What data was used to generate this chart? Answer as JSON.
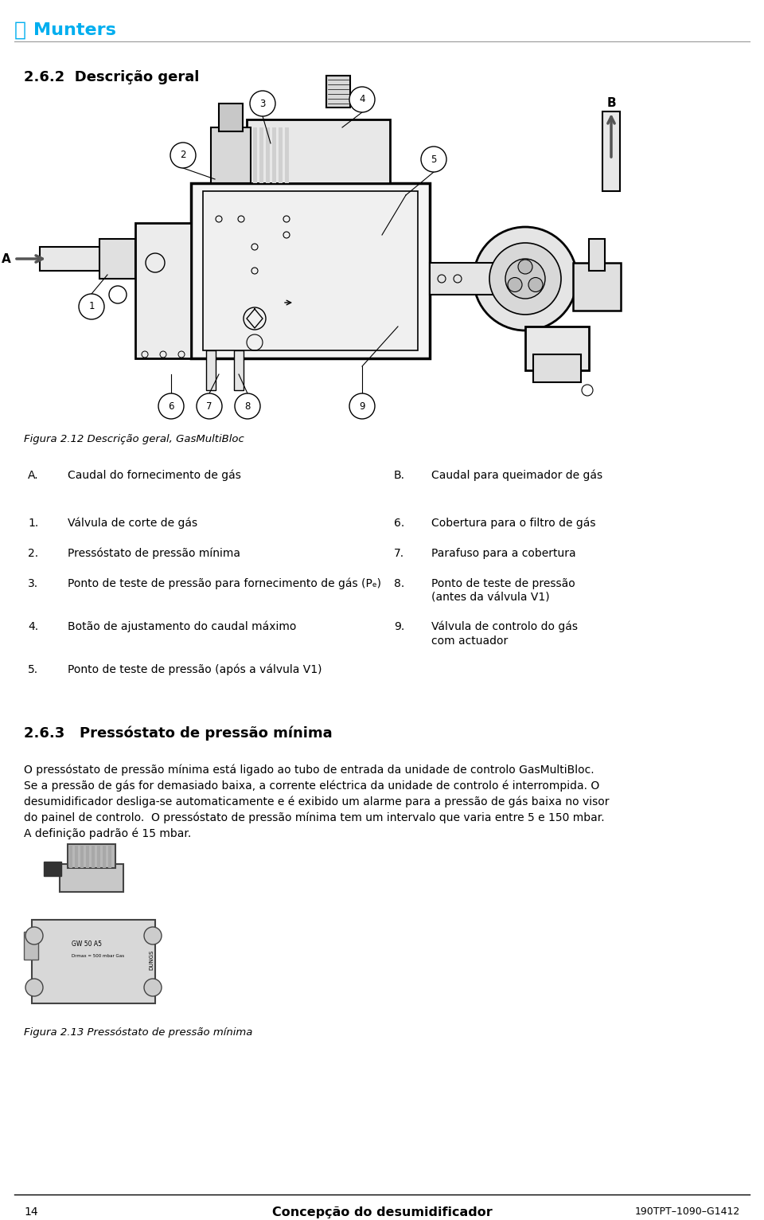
{
  "title_section": "2.6.2  Descrição geral",
  "figure_caption": "Figura 2.12 Descrição geral, GasMultiBloc",
  "munters_color": "#00AEEF",
  "background_color": "#ffffff",
  "text_color": "#000000",
  "header_line_color": "#aaaaaa",
  "footer_line_color": "#000000",
  "page_number": "14",
  "footer_center": "Concepção do desumidificador",
  "footer_right": "190TPT–1090–G1412",
  "AB_items": [
    [
      "A.",
      "Caudal do fornecimento de gás",
      "B.",
      "Caudal para queimador de gás"
    ]
  ],
  "left_items": [
    [
      "1.",
      "Válvula de corte de gás"
    ],
    [
      "2.",
      "Pressóstato de pressão mínima"
    ],
    [
      "3.",
      "Ponto de teste de pressão para fornecimento de gás (Pₑ)"
    ],
    [
      "4.",
      "Botão de ajustamento do caudal máximo"
    ],
    [
      "5.",
      "Ponto de teste de pressão (após a válvula V1)"
    ]
  ],
  "right_items": [
    [
      "6.",
      "Cobertura para o filtro de gás"
    ],
    [
      "7.",
      "Parafuso para a cobertura"
    ],
    [
      "8.",
      "Ponto de teste de pressão\n(antes da válvula V1)"
    ],
    [
      "9.",
      "Válvula de controlo do gás\ncom actuador"
    ]
  ],
  "section_263_title": "2.6.3   Pressóstato de pressão mínima",
  "section_263_lines": [
    "O pressóstato de pressão mínima está ligado ao tubo de entrada da unidade de controlo GasMultiBloc.",
    "Se a pressão de gás for demasiado baixa, a corrente eléctrica da unidade de controlo é interrompida. O",
    "desumidificador desliga-se automaticamente e é exibido um alarme para a pressão de gás baixa no visor",
    "do painel de controlo.  O pressóstato de pressão mínima tem um intervalo que varia entre 5 e 150 mbar.",
    "A definição padrão é 15 mbar."
  ],
  "figure2_caption": "Figura 2.13 Pressóstato de pressão mínima"
}
